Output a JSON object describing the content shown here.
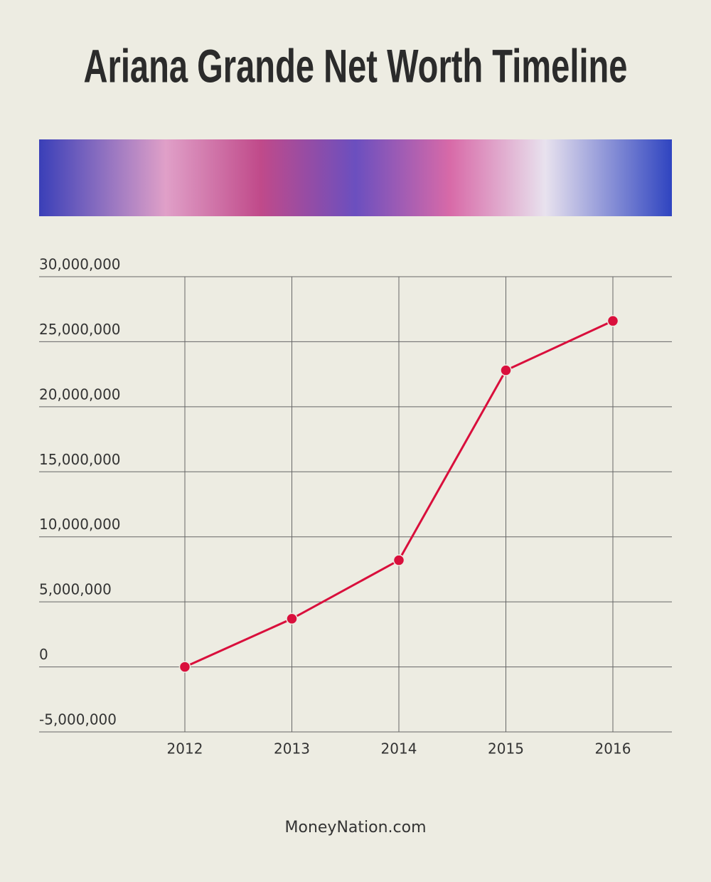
{
  "chart_data": {
    "type": "line",
    "title": "Ariana Grande Net Worth Timeline",
    "categories": [
      "2012",
      "2013",
      "2014",
      "2015",
      "2016"
    ],
    "values": [
      0,
      3700000,
      8200000,
      22800000,
      26600000
    ],
    "color": "#d90f3c",
    "ylim": [
      -5000000,
      30000000
    ],
    "yticks": [
      {
        "value": -5000000,
        "label": "-5,000,000"
      },
      0,
      {
        "value": 5000000,
        "label": "5,000,000"
      },
      {
        "value": 10000000,
        "label": "10,000,000"
      },
      {
        "value": 15000000,
        "label": "15,000,000"
      },
      {
        "value": 20000000,
        "label": "20,000,000"
      },
      {
        "value": 25000000,
        "label": "25,000,000"
      },
      {
        "value": 30000000,
        "label": "30,000,000"
      }
    ],
    "grid": true,
    "source": "MoneyNation.com"
  }
}
